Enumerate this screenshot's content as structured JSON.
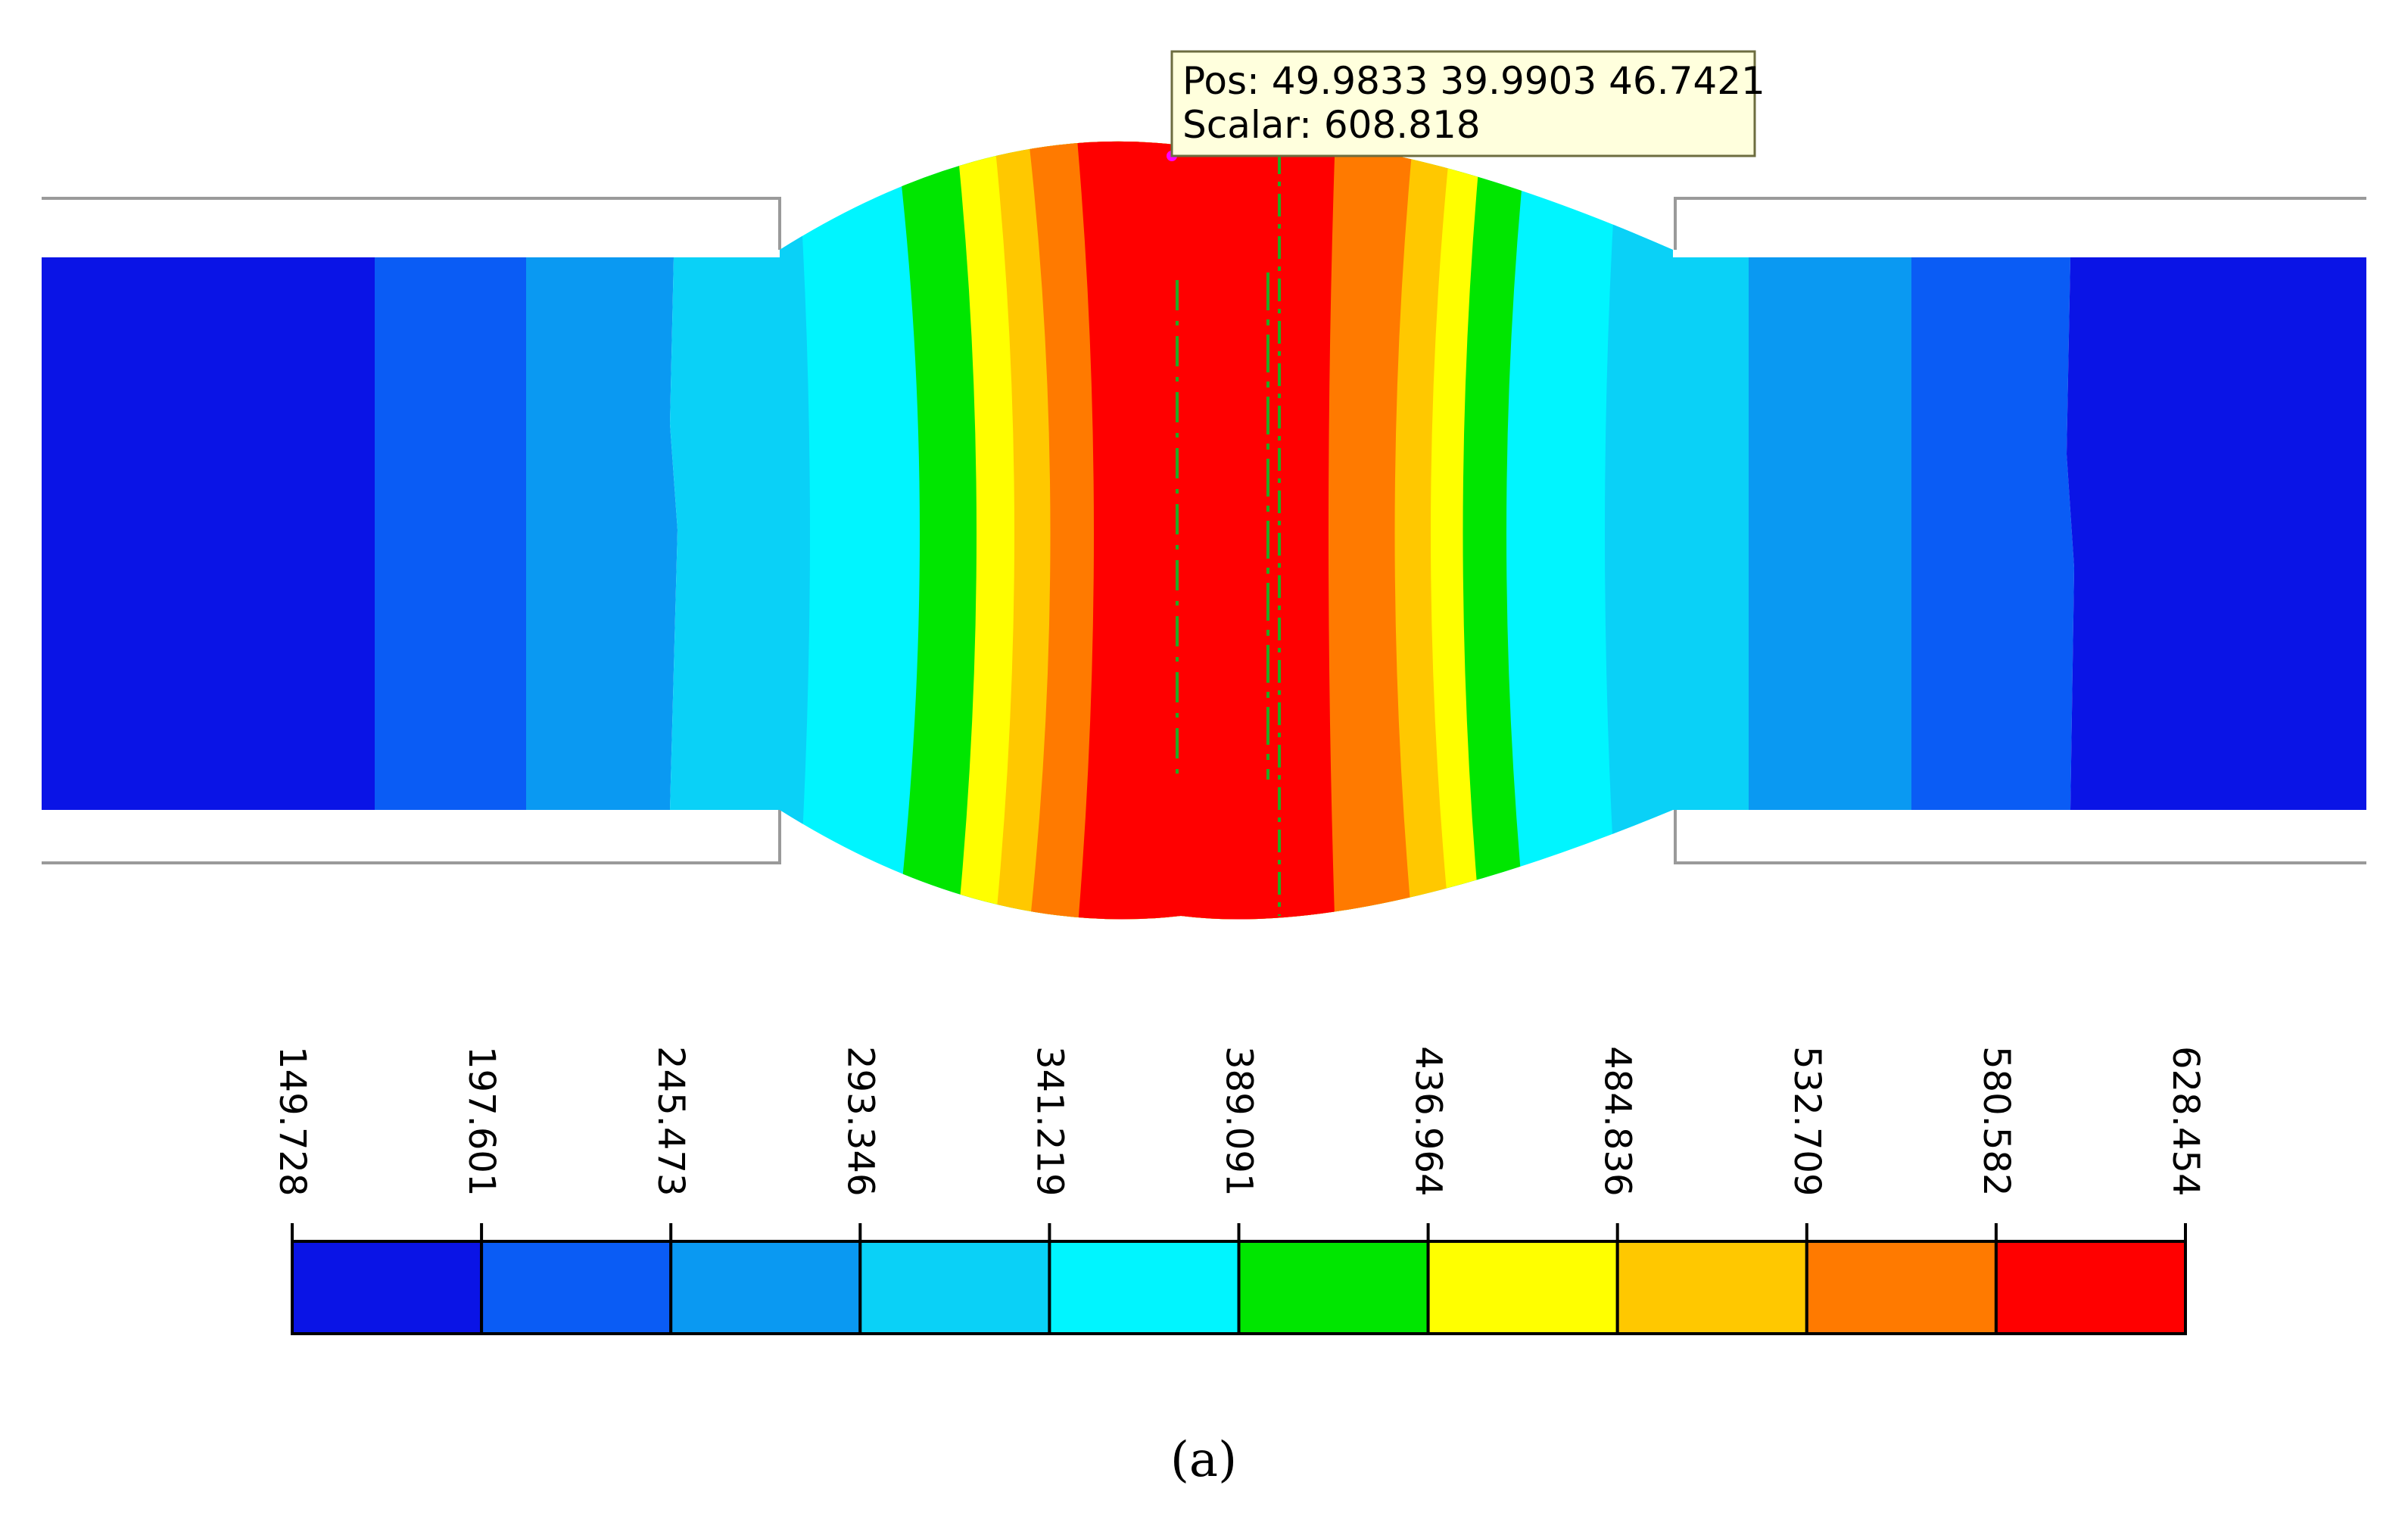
{
  "tooltip": {
    "pos_label": "Pos:",
    "pos_values": "49.9833 39.9903 46.7421",
    "scalar_label": "Scalar:",
    "scalar_value": "608.818"
  },
  "legend": {
    "ticks": [
      "149.728",
      "197.601",
      "245.473",
      "293.346",
      "341.219",
      "389.091",
      "436.964",
      "484.836",
      "532.709",
      "580.582",
      "628.454"
    ],
    "colors": [
      "#0a14e6",
      "#0a5cf5",
      "#0a99f2",
      "#0ad1f7",
      "#00f5ff",
      "#00e600",
      "#ffff00",
      "#ffc800",
      "#ff7a00",
      "#ff0000"
    ]
  },
  "contour_colors": {
    "deep_blue": "#0a14e6",
    "blue": "#0a5cf5",
    "mid_blue": "#0a99f2",
    "sky": "#0ad1f7",
    "cyan": "#00f5ff",
    "green": "#00e600",
    "yellow": "#ffff00",
    "amber": "#ffc800",
    "orange": "#ff7a00",
    "red": "#ff0000"
  },
  "caption": "(a)"
}
